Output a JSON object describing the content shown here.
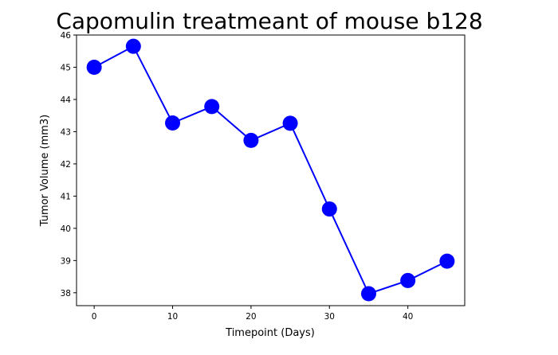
{
  "chart_data": {
    "type": "line",
    "title": "Capomulin treatmeant of mouse b128",
    "xlabel": "Timepoint (Days)",
    "ylabel": "Tumor Volume (mm3)",
    "xlim": [
      -2.25,
      47.25
    ],
    "ylim": [
      37.6,
      46.0
    ],
    "x_ticks": [
      0,
      10,
      20,
      30,
      40
    ],
    "y_ticks": [
      38,
      39,
      40,
      41,
      42,
      43,
      44,
      45,
      46
    ],
    "grid": false,
    "legend": "none",
    "series": [
      {
        "color": "#0000ff",
        "marker": "circle",
        "x": [
          0,
          5,
          10,
          15,
          20,
          25,
          30,
          35,
          40,
          45
        ],
        "y": [
          45.0,
          45.65,
          43.27,
          43.78,
          42.73,
          43.26,
          40.6,
          37.97,
          38.38,
          38.98
        ]
      }
    ]
  }
}
